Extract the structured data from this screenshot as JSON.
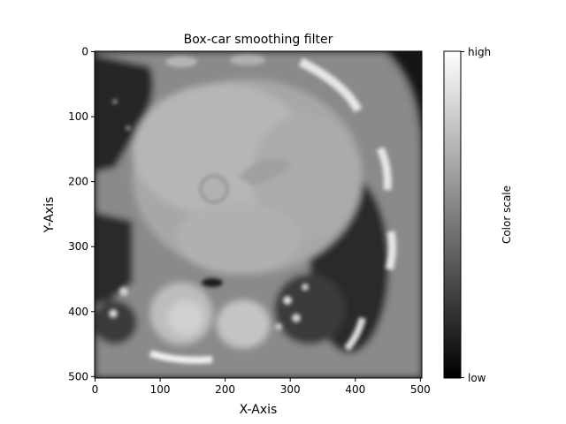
{
  "figure": {
    "title": "Box-car smoothing filter",
    "xlabel": "X-Axis",
    "ylabel": "Y-Axis"
  },
  "image": {
    "subject": "axial CT slice of the chest at heart level, box-car smoothed",
    "colormap": "grayscale"
  },
  "colorbar": {
    "label": "Color scale",
    "tick_high": "high",
    "tick_low": "low"
  },
  "chart_data": {
    "type": "heatmap",
    "title": "Box-car smoothing filter",
    "xlabel": "X-Axis",
    "ylabel": "Y-Axis",
    "xlim": [
      0,
      503
    ],
    "ylim": [
      503,
      0
    ],
    "x_ticks": [
      0,
      100,
      200,
      300,
      400,
      500
    ],
    "y_ticks": [
      0,
      100,
      200,
      300,
      400,
      500
    ],
    "colormap": "gray",
    "colorbar_ticks": [
      "low",
      "high"
    ],
    "colorbar_label": "Color scale",
    "grid": false
  }
}
